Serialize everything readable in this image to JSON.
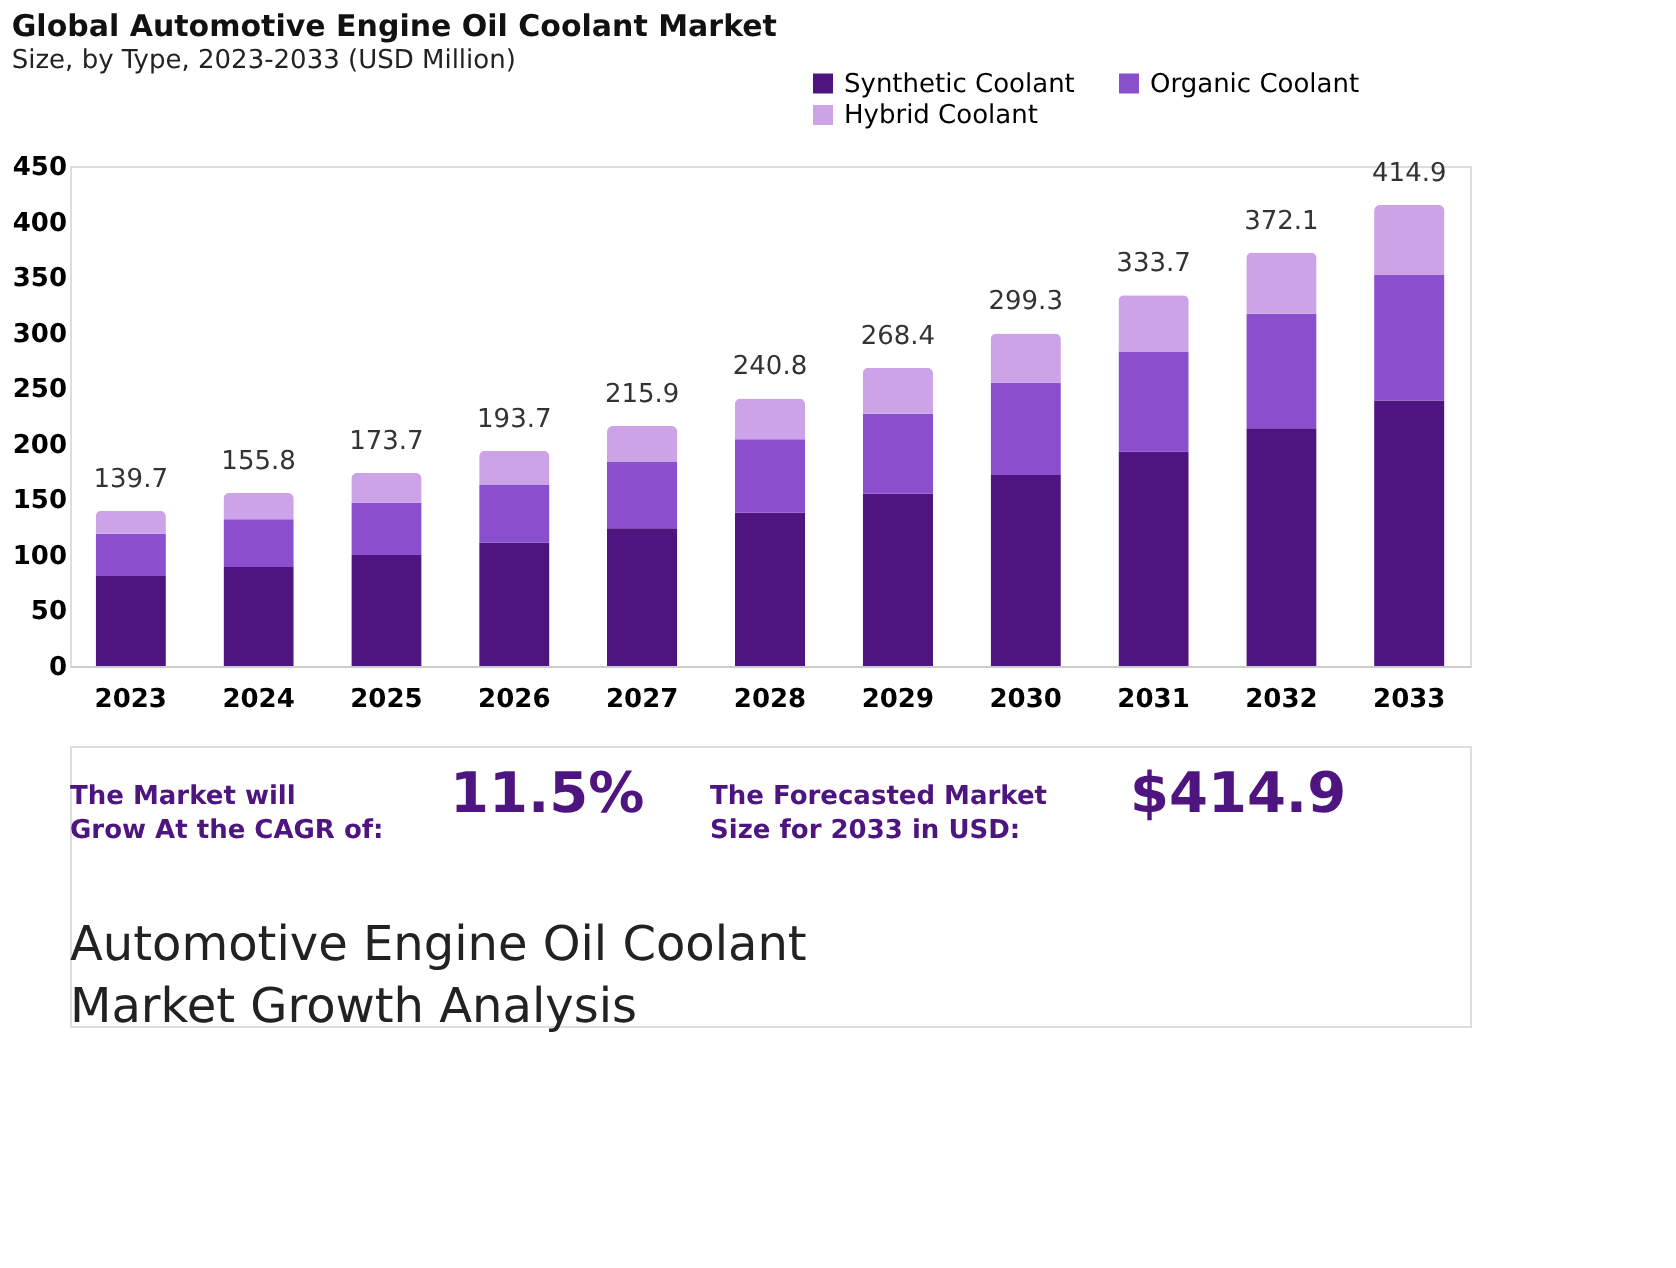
{
  "chart_data": {
    "type": "bar",
    "title": "Global Automotive Engine Oil Coolant Market",
    "subtitle": "Size, by Type, 2023-2033 (USD Million)",
    "categories": [
      "2023",
      "2024",
      "2025",
      "2026",
      "2027",
      "2028",
      "2029",
      "2030",
      "2031",
      "2032",
      "2033"
    ],
    "stacked": true,
    "series": [
      {
        "name": "Synthetic Coolant",
        "color": "#4e1580",
        "values": [
          81,
          89,
          100,
          111,
          124,
          138,
          155,
          172,
          193,
          214,
          239
        ]
      },
      {
        "name": "Organic Coolant",
        "color": "#8a4fcc",
        "values": [
          38,
          43,
          47,
          52,
          60,
          66,
          72,
          83,
          90,
          103,
          113
        ]
      },
      {
        "name": "Hybrid Coolant",
        "color": "#cda3e8",
        "values": [
          20.7,
          23.8,
          26.7,
          30.7,
          31.9,
          36.8,
          41.4,
          44.3,
          50.7,
          55.1,
          62.9
        ]
      }
    ],
    "totals": [
      "139.7",
      "155.8",
      "173.7",
      "193.7",
      "215.9",
      "240.8",
      "268.4",
      "299.3",
      "333.7",
      "372.1",
      "414.9"
    ],
    "ylim": [
      0,
      450
    ],
    "yticks": [
      0,
      50,
      100,
      150,
      200,
      250,
      300,
      350,
      400,
      450
    ],
    "grid": false,
    "legend": "top right",
    "annotations": [
      "The Market will Grow At the CAGR of:",
      "11.5%",
      "The Forecasted Market Size for 2033 in USD:",
      "$414.9",
      "Automotive Engine Oil Coolant Market Growth Analysis"
    ]
  }
}
